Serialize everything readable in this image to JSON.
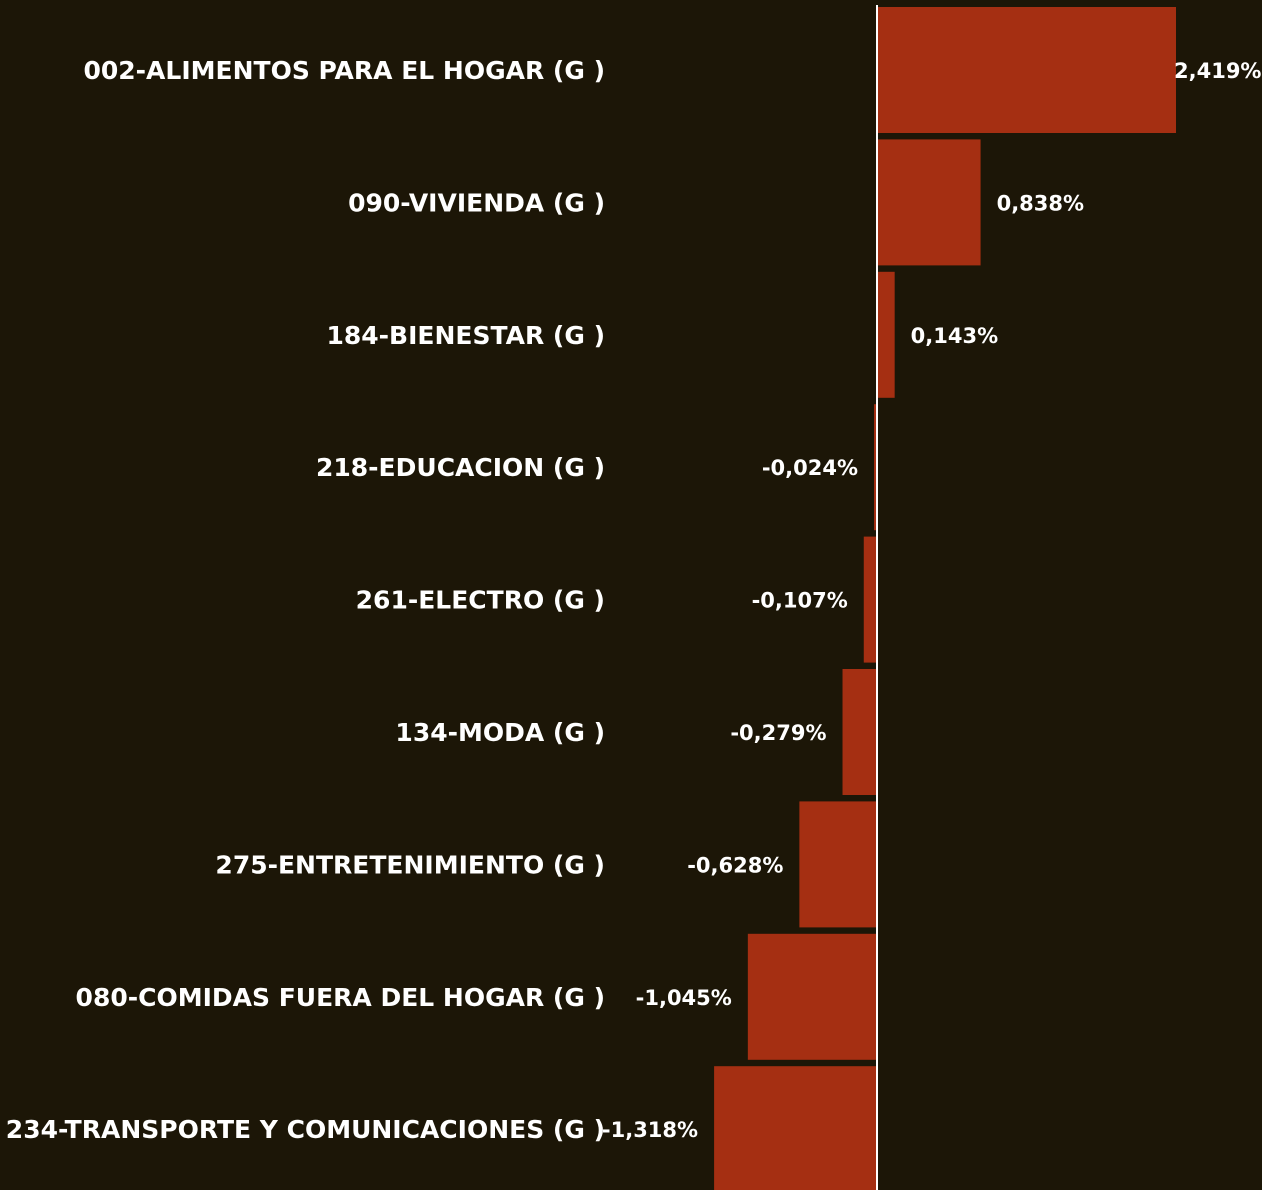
{
  "chart_data": {
    "type": "bar",
    "orientation": "horizontal",
    "categories": [
      "002-ALIMENTOS PARA EL HOGAR (G )",
      "090-VIVIENDA (G )",
      "184-BIENESTAR (G )",
      "218-EDUCACION (G )",
      "261-ELECTRO (G )",
      "134-MODA (G )",
      "275-ENTRETENIMIENTO (G )",
      "080-COMIDAS FUERA DEL HOGAR (G )",
      "234-TRANSPORTE Y COMUNICACIONES (G )"
    ],
    "values": [
      2.419,
      0.838,
      0.143,
      -0.024,
      -0.107,
      -0.279,
      -0.628,
      -1.045,
      -1.318
    ],
    "value_labels": [
      "2,419%",
      "0,838%",
      "0,143%",
      "-0,024%",
      "-0,107%",
      "-0,279%",
      "-0,628%",
      "-1,045%",
      "-1,318%"
    ],
    "color": "#a52f12"
  }
}
